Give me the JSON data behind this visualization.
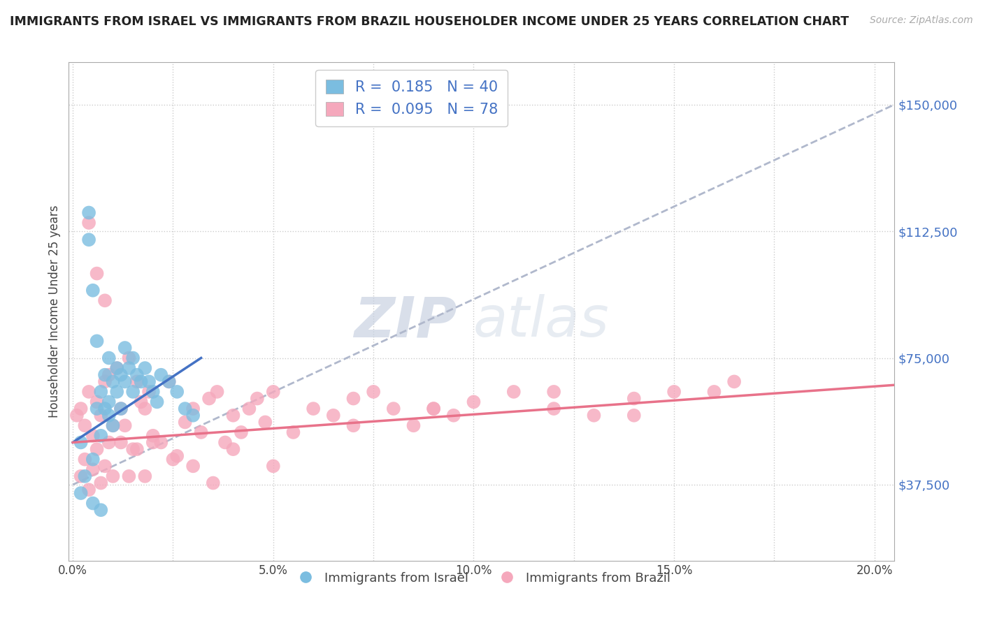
{
  "title": "IMMIGRANTS FROM ISRAEL VS IMMIGRANTS FROM BRAZIL HOUSEHOLDER INCOME UNDER 25 YEARS CORRELATION CHART",
  "source": "Source: ZipAtlas.com",
  "ylabel": "Householder Income Under 25 years",
  "y_tick_labels": [
    "$37,500",
    "$75,000",
    "$112,500",
    "$150,000"
  ],
  "y_ticks": [
    37500,
    75000,
    112500,
    150000
  ],
  "ylim": [
    15000,
    162500
  ],
  "xlim": [
    -0.001,
    0.205
  ],
  "israel_R": 0.185,
  "israel_N": 40,
  "brazil_R": 0.095,
  "brazil_N": 78,
  "israel_color": "#7bbde0",
  "brazil_color": "#f5a8bc",
  "israel_line_color": "#4472c4",
  "brazil_line_color": "#e8728a",
  "trendline_color": "#b0b8cc",
  "legend_label_israel": "Immigrants from Israel",
  "legend_label_brazil": "Immigrants from Brazil",
  "watermark_zip": "ZIP",
  "watermark_atlas": "atlas",
  "israel_x": [
    0.002,
    0.004,
    0.004,
    0.005,
    0.005,
    0.006,
    0.006,
    0.007,
    0.007,
    0.008,
    0.008,
    0.009,
    0.009,
    0.009,
    0.01,
    0.01,
    0.011,
    0.011,
    0.012,
    0.012,
    0.013,
    0.013,
    0.014,
    0.015,
    0.015,
    0.016,
    0.017,
    0.018,
    0.019,
    0.02,
    0.021,
    0.022,
    0.024,
    0.026,
    0.028,
    0.03,
    0.002,
    0.003,
    0.005,
    0.007
  ],
  "israel_y": [
    50000,
    118000,
    110000,
    95000,
    45000,
    80000,
    60000,
    52000,
    65000,
    70000,
    60000,
    75000,
    62000,
    58000,
    68000,
    55000,
    72000,
    65000,
    70000,
    60000,
    78000,
    68000,
    72000,
    65000,
    75000,
    70000,
    68000,
    72000,
    68000,
    65000,
    62000,
    70000,
    68000,
    65000,
    60000,
    58000,
    35000,
    40000,
    32000,
    30000
  ],
  "brazil_x": [
    0.001,
    0.002,
    0.003,
    0.004,
    0.005,
    0.006,
    0.007,
    0.008,
    0.009,
    0.01,
    0.011,
    0.012,
    0.013,
    0.014,
    0.015,
    0.016,
    0.017,
    0.018,
    0.019,
    0.02,
    0.022,
    0.024,
    0.026,
    0.028,
    0.03,
    0.032,
    0.034,
    0.036,
    0.038,
    0.04,
    0.042,
    0.044,
    0.046,
    0.048,
    0.05,
    0.055,
    0.06,
    0.065,
    0.07,
    0.075,
    0.08,
    0.085,
    0.09,
    0.095,
    0.1,
    0.11,
    0.12,
    0.13,
    0.14,
    0.15,
    0.16,
    0.165,
    0.002,
    0.003,
    0.004,
    0.005,
    0.006,
    0.007,
    0.008,
    0.009,
    0.01,
    0.012,
    0.014,
    0.016,
    0.018,
    0.02,
    0.025,
    0.03,
    0.035,
    0.04,
    0.05,
    0.07,
    0.09,
    0.12,
    0.14,
    0.004,
    0.006,
    0.008
  ],
  "brazil_y": [
    58000,
    60000,
    55000,
    65000,
    52000,
    62000,
    58000,
    68000,
    70000,
    55000,
    72000,
    60000,
    55000,
    75000,
    48000,
    68000,
    62000,
    60000,
    65000,
    52000,
    50000,
    68000,
    46000,
    56000,
    60000,
    53000,
    63000,
    65000,
    50000,
    58000,
    53000,
    60000,
    63000,
    56000,
    65000,
    53000,
    60000,
    58000,
    63000,
    65000,
    60000,
    55000,
    60000,
    58000,
    62000,
    65000,
    60000,
    58000,
    63000,
    65000,
    65000,
    68000,
    40000,
    45000,
    36000,
    42000,
    48000,
    38000,
    43000,
    50000,
    40000,
    50000,
    40000,
    48000,
    40000,
    50000,
    45000,
    43000,
    38000,
    48000,
    43000,
    55000,
    60000,
    65000,
    58000,
    115000,
    100000,
    92000
  ],
  "israel_trend_x": [
    0.0,
    0.032
  ],
  "israel_trend_y": [
    50000,
    75000
  ],
  "brazil_trend_x": [
    0.0,
    0.205
  ],
  "brazil_trend_y": [
    50000,
    67000
  ],
  "dashed_trend_x": [
    0.0,
    0.205
  ],
  "dashed_trend_y": [
    37500,
    150000
  ]
}
